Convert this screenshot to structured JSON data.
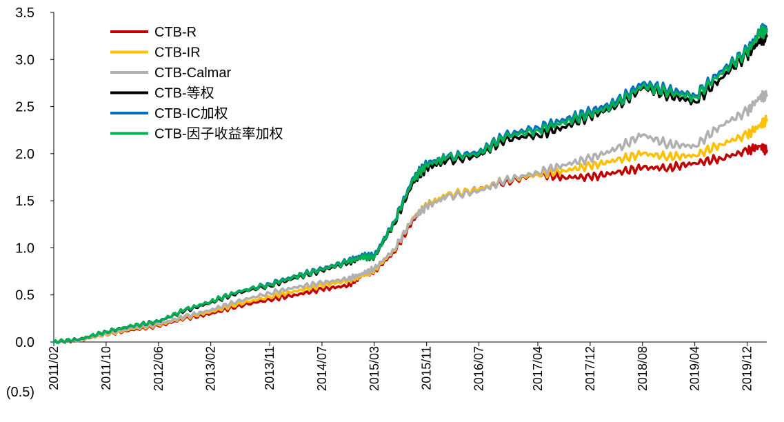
{
  "chart_data": {
    "type": "line",
    "title": "",
    "xlabel": "",
    "ylabel": "",
    "ylim": [
      -0.5,
      3.5
    ],
    "y_ticks": [
      "(0.5)",
      "0.0",
      "0.5",
      "1.0",
      "1.5",
      "2.0",
      "2.5",
      "3.0",
      "3.5"
    ],
    "y_tick_values": [
      -0.5,
      0.0,
      0.5,
      1.0,
      1.5,
      2.0,
      2.5,
      3.0,
      3.5
    ],
    "x_ticks": [
      "2011/02",
      "2011/10",
      "2012/06",
      "2013/02",
      "2013/11",
      "2014/07",
      "2015/03",
      "2015/11",
      "2016/07",
      "2017/04",
      "2017/12",
      "2018/08",
      "2019/04",
      "2019/12"
    ],
    "x_range": [
      "2011/02",
      "2020/03"
    ],
    "grid": false,
    "legend_position": "top-left",
    "x": [
      "2011/02",
      "2011/06",
      "2011/10",
      "2012/02",
      "2012/06",
      "2012/10",
      "2013/02",
      "2013/06",
      "2013/11",
      "2014/03",
      "2014/07",
      "2014/11",
      "2015/01",
      "2015/03",
      "2015/06",
      "2015/09",
      "2015/11",
      "2016/02",
      "2016/07",
      "2016/11",
      "2017/04",
      "2017/08",
      "2017/12",
      "2018/04",
      "2018/08",
      "2018/12",
      "2019/04",
      "2019/08",
      "2019/12",
      "2020/02",
      "2020/03"
    ],
    "series": [
      {
        "name": "CTB-R",
        "color": "#c00000",
        "values": [
          0.0,
          0.02,
          0.08,
          0.13,
          0.17,
          0.25,
          0.3,
          0.38,
          0.45,
          0.5,
          0.56,
          0.6,
          0.7,
          0.75,
          0.95,
          1.3,
          1.45,
          1.55,
          1.62,
          1.7,
          1.78,
          1.75,
          1.75,
          1.8,
          1.85,
          1.85,
          1.9,
          1.95,
          2.03,
          2.08,
          2.03
        ]
      },
      {
        "name": "CTB-IR",
        "color": "#ffc000",
        "values": [
          0.0,
          0.02,
          0.08,
          0.14,
          0.18,
          0.26,
          0.32,
          0.4,
          0.48,
          0.54,
          0.6,
          0.65,
          0.7,
          0.76,
          0.97,
          1.33,
          1.45,
          1.56,
          1.62,
          1.72,
          1.78,
          1.82,
          1.87,
          1.93,
          2.0,
          1.97,
          1.98,
          2.1,
          2.2,
          2.3,
          2.36
        ]
      },
      {
        "name": "CTB-Calmar",
        "color": "#b0b0b0",
        "values": [
          0.0,
          0.02,
          0.09,
          0.15,
          0.19,
          0.27,
          0.34,
          0.43,
          0.52,
          0.58,
          0.63,
          0.67,
          0.72,
          0.78,
          0.98,
          1.32,
          1.44,
          1.54,
          1.6,
          1.72,
          1.8,
          1.88,
          1.95,
          2.05,
          2.2,
          2.1,
          2.08,
          2.3,
          2.45,
          2.6,
          2.62
        ]
      },
      {
        "name": "CTB-等权",
        "color": "#000000",
        "values": [
          0.0,
          0.03,
          0.11,
          0.17,
          0.22,
          0.33,
          0.42,
          0.52,
          0.6,
          0.68,
          0.76,
          0.84,
          0.9,
          0.9,
          1.25,
          1.7,
          1.85,
          1.92,
          1.98,
          2.15,
          2.2,
          2.28,
          2.4,
          2.5,
          2.7,
          2.62,
          2.55,
          2.8,
          3.05,
          3.2,
          3.25
        ]
      },
      {
        "name": "CTB-IC加权",
        "color": "#0070c0",
        "values": [
          0.0,
          0.03,
          0.11,
          0.17,
          0.22,
          0.34,
          0.43,
          0.53,
          0.62,
          0.7,
          0.78,
          0.86,
          0.92,
          0.92,
          1.28,
          1.75,
          1.9,
          1.96,
          2.02,
          2.2,
          2.28,
          2.36,
          2.45,
          2.55,
          2.75,
          2.68,
          2.62,
          2.88,
          3.1,
          3.3,
          3.32
        ]
      },
      {
        "name": "CTB-因子收益率加权",
        "color": "#00b050",
        "values": [
          0.0,
          0.03,
          0.11,
          0.17,
          0.22,
          0.34,
          0.43,
          0.53,
          0.61,
          0.69,
          0.77,
          0.85,
          0.9,
          0.9,
          1.27,
          1.73,
          1.88,
          1.95,
          2.0,
          2.18,
          2.25,
          2.33,
          2.42,
          2.52,
          2.72,
          2.65,
          2.6,
          2.85,
          3.08,
          3.28,
          3.3
        ]
      }
    ]
  }
}
